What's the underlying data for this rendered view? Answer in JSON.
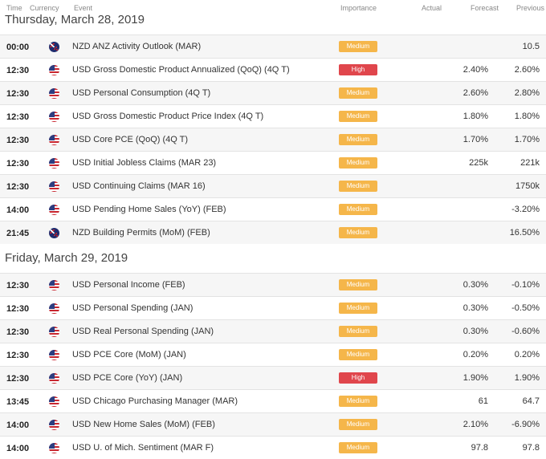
{
  "header": {
    "time": "Time",
    "currency": "Currency",
    "event": "Event",
    "importance": "Importance",
    "actual": "Actual",
    "forecast": "Forecast",
    "previous": "Previous"
  },
  "days": [
    {
      "label": "Thursday, March 28, 2019",
      "rows": [
        {
          "time": "00:00",
          "flag": "nz",
          "event": "NZD ANZ Activity Outlook (MAR)",
          "importance": "Medium",
          "forecast": "",
          "previous": "10.5"
        },
        {
          "time": "12:30",
          "flag": "us",
          "event": "USD Gross Domestic Product Annualized (QoQ) (4Q T)",
          "importance": "High",
          "forecast": "2.40%",
          "previous": "2.60%"
        },
        {
          "time": "12:30",
          "flag": "us",
          "event": "USD Personal Consumption (4Q T)",
          "importance": "Medium",
          "forecast": "2.60%",
          "previous": "2.80%"
        },
        {
          "time": "12:30",
          "flag": "us",
          "event": "USD Gross Domestic Product Price Index (4Q T)",
          "importance": "Medium",
          "forecast": "1.80%",
          "previous": "1.80%"
        },
        {
          "time": "12:30",
          "flag": "us",
          "event": "USD Core PCE (QoQ) (4Q T)",
          "importance": "Medium",
          "forecast": "1.70%",
          "previous": "1.70%"
        },
        {
          "time": "12:30",
          "flag": "us",
          "event": "USD Initial Jobless Claims (MAR 23)",
          "importance": "Medium",
          "forecast": "225k",
          "previous": "221k"
        },
        {
          "time": "12:30",
          "flag": "us",
          "event": "USD Continuing Claims (MAR 16)",
          "importance": "Medium",
          "forecast": "",
          "previous": "1750k"
        },
        {
          "time": "14:00",
          "flag": "us",
          "event": "USD Pending Home Sales (YoY) (FEB)",
          "importance": "Medium",
          "forecast": "",
          "previous": "-3.20%"
        },
        {
          "time": "21:45",
          "flag": "nz",
          "event": "NZD Building Permits (MoM) (FEB)",
          "importance": "Medium",
          "forecast": "",
          "previous": "16.50%"
        }
      ]
    },
    {
      "label": "Friday, March 29, 2019",
      "rows": [
        {
          "time": "12:30",
          "flag": "us",
          "event": "USD Personal Income (FEB)",
          "importance": "Medium",
          "forecast": "0.30%",
          "previous": "-0.10%"
        },
        {
          "time": "12:30",
          "flag": "us",
          "event": "USD Personal Spending (JAN)",
          "importance": "Medium",
          "forecast": "0.30%",
          "previous": "-0.50%"
        },
        {
          "time": "12:30",
          "flag": "us",
          "event": "USD Real Personal Spending (JAN)",
          "importance": "Medium",
          "forecast": "0.30%",
          "previous": "-0.60%"
        },
        {
          "time": "12:30",
          "flag": "us",
          "event": "USD PCE Core (MoM) (JAN)",
          "importance": "Medium",
          "forecast": "0.20%",
          "previous": "0.20%"
        },
        {
          "time": "12:30",
          "flag": "us",
          "event": "USD PCE Core (YoY) (JAN)",
          "importance": "High",
          "forecast": "1.90%",
          "previous": "1.90%"
        },
        {
          "time": "13:45",
          "flag": "us",
          "event": "USD Chicago Purchasing Manager (MAR)",
          "importance": "Medium",
          "forecast": "61",
          "previous": "64.7"
        },
        {
          "time": "14:00",
          "flag": "us",
          "event": "USD New Home Sales (MoM) (FEB)",
          "importance": "Medium",
          "forecast": "2.10%",
          "previous": "-6.90%"
        },
        {
          "time": "14:00",
          "flag": "us",
          "event": "USD U. of Mich. Sentiment (MAR F)",
          "importance": "Medium",
          "forecast": "97.8",
          "previous": "97.8"
        }
      ]
    }
  ]
}
